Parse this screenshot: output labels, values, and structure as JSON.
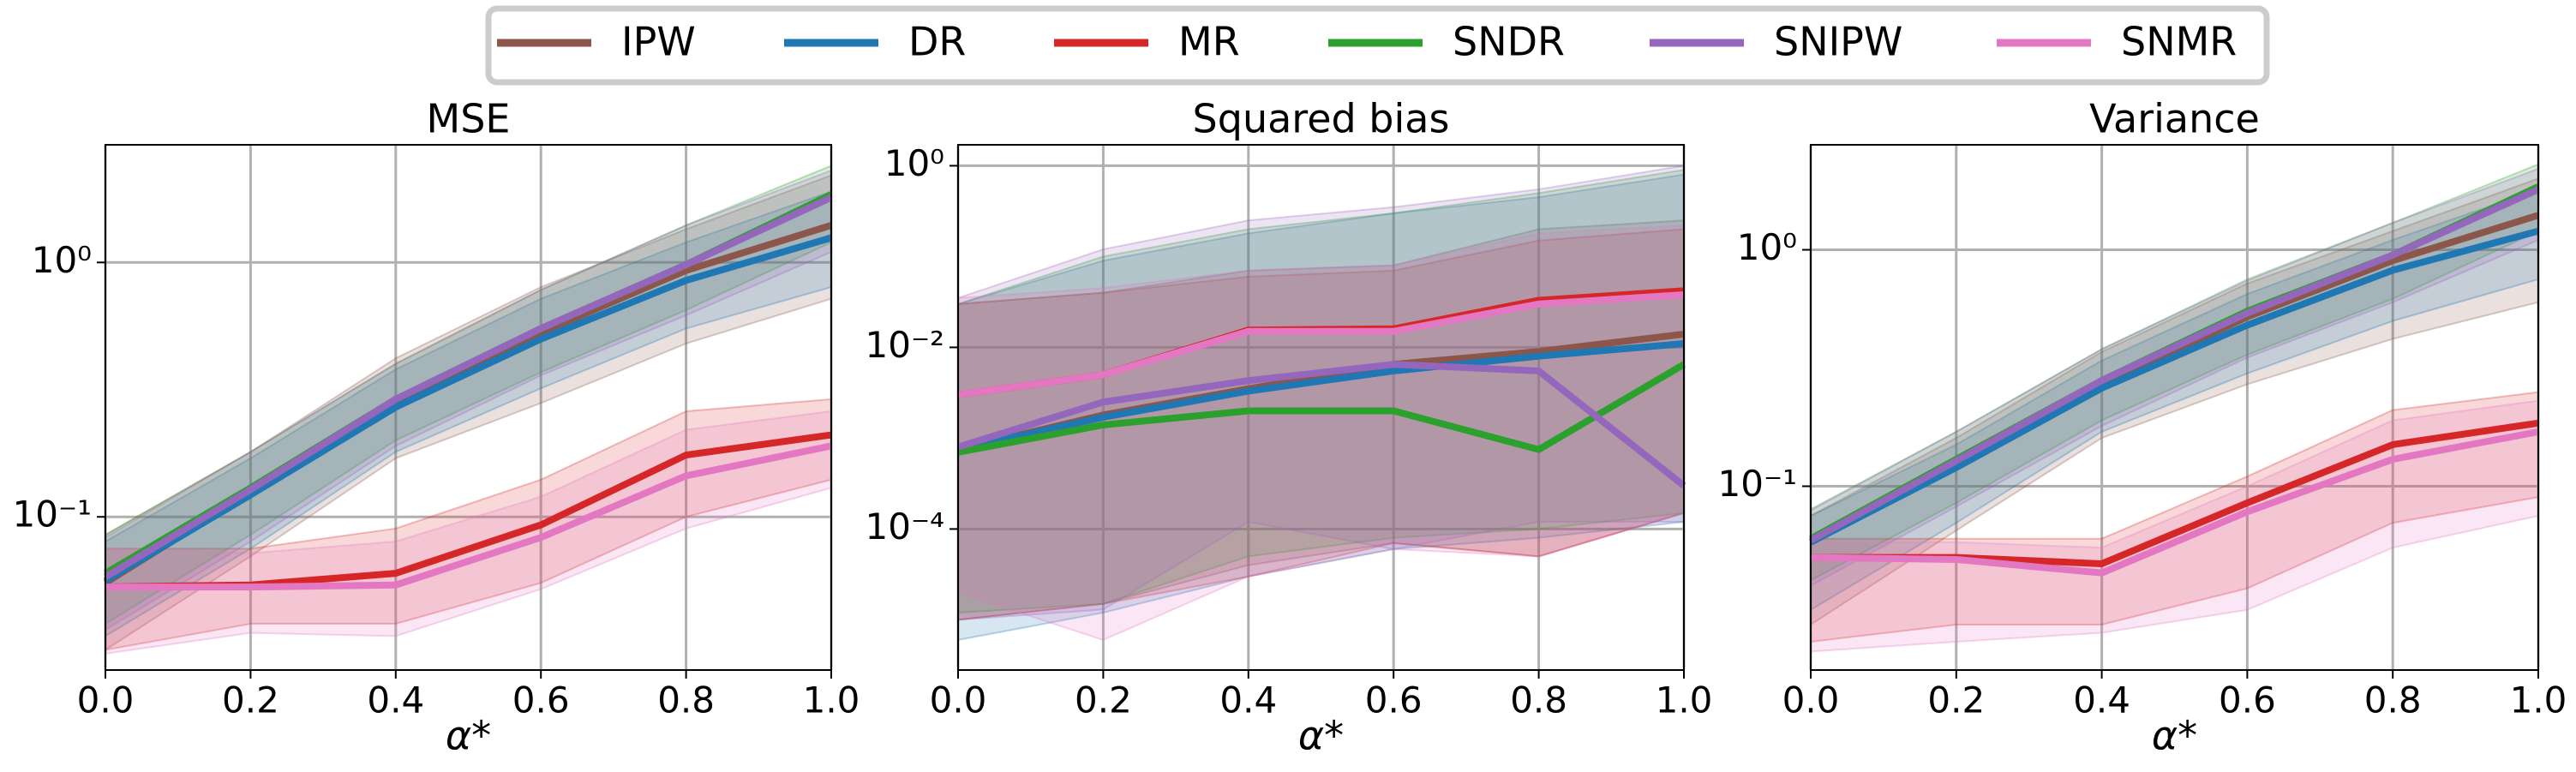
{
  "chart_data": [
    {
      "type": "line",
      "title": "MSE",
      "xlabel": "α*",
      "log_y": true,
      "grid": true,
      "legend": "top",
      "x": [
        0,
        0.2,
        0.4,
        0.6,
        0.8,
        1.0
      ],
      "xlim": [
        0,
        1.0
      ],
      "xticks": [
        {
          "value": 0,
          "label": "0.0"
        },
        {
          "value": 0.2,
          "label": "0.2"
        },
        {
          "value": 0.4,
          "label": "0.4"
        },
        {
          "value": 0.6,
          "label": "0.6"
        },
        {
          "value": 0.8,
          "label": "0.8"
        },
        {
          "value": 1.0,
          "label": "1.0"
        }
      ],
      "ylim": [
        0.025,
        2.9
      ],
      "yticks": [
        {
          "value": 0.1,
          "label": "10⁻¹"
        },
        {
          "value": 1,
          "label": "10⁰"
        }
      ],
      "series": [
        {
          "name": "IPW",
          "color": "#8c564b",
          "values": [
            0.055,
            0.125,
            0.28,
            0.53,
            0.93,
            1.4
          ],
          "lower": [
            0.03,
            0.07,
            0.17,
            0.28,
            0.48,
            0.72
          ],
          "upper": [
            0.085,
            0.18,
            0.42,
            0.8,
            1.35,
            2.2
          ]
        },
        {
          "name": "DR",
          "color": "#1f77b4",
          "values": [
            0.056,
            0.122,
            0.27,
            0.5,
            0.85,
            1.25
          ],
          "lower": [
            0.034,
            0.075,
            0.18,
            0.32,
            0.55,
            0.8
          ],
          "upper": [
            0.08,
            0.17,
            0.38,
            0.72,
            1.2,
            1.9
          ]
        },
        {
          "name": "MR",
          "color": "#d62728",
          "values": [
            0.053,
            0.054,
            0.06,
            0.093,
            0.175,
            0.21
          ],
          "lower": [
            0.03,
            0.038,
            0.038,
            0.055,
            0.1,
            0.14
          ],
          "upper": [
            0.075,
            0.075,
            0.09,
            0.14,
            0.26,
            0.29
          ]
        },
        {
          "name": "SNDR",
          "color": "#2ca02c",
          "values": [
            0.06,
            0.13,
            0.29,
            0.55,
            0.98,
            1.85
          ],
          "lower": [
            0.038,
            0.085,
            0.2,
            0.37,
            0.65,
            1.2
          ],
          "upper": [
            0.085,
            0.18,
            0.4,
            0.78,
            1.4,
            2.4
          ]
        },
        {
          "name": "SNIPW",
          "color": "#9467bd",
          "values": [
            0.058,
            0.128,
            0.29,
            0.55,
            0.98,
            1.8
          ],
          "lower": [
            0.036,
            0.08,
            0.19,
            0.36,
            0.62,
            1.1
          ],
          "upper": [
            0.083,
            0.18,
            0.4,
            0.78,
            1.4,
            2.3
          ]
        },
        {
          "name": "SNMR",
          "color": "#e377c2",
          "values": [
            0.053,
            0.053,
            0.054,
            0.083,
            0.145,
            0.19
          ],
          "lower": [
            0.029,
            0.035,
            0.034,
            0.052,
            0.09,
            0.13
          ],
          "upper": [
            0.075,
            0.072,
            0.08,
            0.12,
            0.22,
            0.26
          ]
        }
      ]
    },
    {
      "type": "line",
      "title": "Squared bias",
      "xlabel": "α*",
      "log_y": true,
      "grid": true,
      "x": [
        0,
        0.2,
        0.4,
        0.6,
        0.8,
        1.0
      ],
      "xlim": [
        0,
        1.0
      ],
      "xticks": [
        {
          "value": 0,
          "label": "0.0"
        },
        {
          "value": 0.2,
          "label": "0.2"
        },
        {
          "value": 0.4,
          "label": "0.4"
        },
        {
          "value": 0.6,
          "label": "0.6"
        },
        {
          "value": 0.8,
          "label": "0.8"
        },
        {
          "value": 1.0,
          "label": "1.0"
        }
      ],
      "ylim": [
        2.8e-06,
        1.7
      ],
      "yticks": [
        {
          "value": 0.0001,
          "label": "10⁻⁴"
        },
        {
          "value": 0.01,
          "label": "10⁻²"
        },
        {
          "value": 1,
          "label": "10⁰"
        }
      ],
      "series": [
        {
          "name": "IPW",
          "color": "#8c564b",
          "values": [
            0.00075,
            0.0018,
            0.0035,
            0.0065,
            0.009,
            0.014
          ],
          "lower": [
            1e-05,
            1.5e-05,
            4e-05,
            7e-05,
            5e-05,
            0.00015
          ],
          "upper": [
            0.03,
            0.04,
            0.07,
            0.08,
            0.2,
            0.25
          ]
        },
        {
          "name": "DR",
          "color": "#1f77b4",
          "values": [
            0.00075,
            0.0017,
            0.0033,
            0.0055,
            0.008,
            0.011
          ],
          "lower": [
            6e-06,
            1.2e-05,
            3e-05,
            6e-05,
            8e-05,
            0.00012
          ],
          "upper": [
            0.03,
            0.09,
            0.18,
            0.3,
            0.45,
            0.8
          ]
        },
        {
          "name": "MR",
          "color": "#d62728",
          "values": [
            0.003,
            0.005,
            0.0155,
            0.016,
            0.033,
            0.042
          ],
          "lower": [
            1e-05,
            1.5e-05,
            3e-05,
            7e-05,
            5e-05,
            0.00015
          ],
          "upper": [
            0.03,
            0.04,
            0.06,
            0.07,
            0.15,
            0.2
          ]
        },
        {
          "name": "SNDR",
          "color": "#2ca02c",
          "values": [
            0.0007,
            0.0014,
            0.002,
            0.002,
            0.00075,
            0.0065
          ],
          "lower": [
            1.2e-05,
            1.5e-05,
            5e-05,
            8e-05,
            0.0001,
            0.00015
          ],
          "upper": [
            0.03,
            0.1,
            0.2,
            0.3,
            0.5,
            0.9
          ]
        },
        {
          "name": "SNIPW",
          "color": "#9467bd",
          "values": [
            0.0008,
            0.0025,
            0.0043,
            0.0065,
            0.0055,
            0.0003
          ],
          "lower": [
            1e-05,
            1.3e-05,
            0.00012,
            6e-05,
            0.00012,
            0.00012
          ],
          "upper": [
            0.035,
            0.12,
            0.25,
            0.35,
            0.55,
            1.0
          ]
        },
        {
          "name": "SNMR",
          "color": "#e377c2",
          "values": [
            0.003,
            0.005,
            0.015,
            0.015,
            0.03,
            0.038
          ],
          "lower": [
            2e-05,
            6e-06,
            3e-05,
            6e-05,
            5e-05,
            0.00015
          ],
          "upper": [
            0.035,
            0.045,
            0.07,
            0.08,
            0.18,
            0.22
          ]
        }
      ]
    },
    {
      "type": "line",
      "title": "Variance",
      "xlabel": "α*",
      "log_y": true,
      "grid": true,
      "x": [
        0,
        0.2,
        0.4,
        0.6,
        0.8,
        1.0
      ],
      "xlim": [
        0,
        1.0
      ],
      "xticks": [
        {
          "value": 0,
          "label": "0.0"
        },
        {
          "value": 0.2,
          "label": "0.2"
        },
        {
          "value": 0.4,
          "label": "0.4"
        },
        {
          "value": 0.6,
          "label": "0.6"
        },
        {
          "value": 0.8,
          "label": "0.8"
        },
        {
          "value": 1.0,
          "label": "1.0"
        }
      ],
      "ylim": [
        0.0167,
        2.78
      ],
      "yticks": [
        {
          "value": 0.1,
          "label": "10⁻¹"
        },
        {
          "value": 1,
          "label": "10⁰"
        }
      ],
      "series": [
        {
          "name": "IPW",
          "color": "#8c564b",
          "values": [
            0.058,
            0.125,
            0.27,
            0.52,
            0.9,
            1.4
          ],
          "lower": [
            0.026,
            0.065,
            0.16,
            0.27,
            0.42,
            0.6
          ],
          "upper": [
            0.075,
            0.16,
            0.37,
            0.72,
            1.2,
            2.0
          ]
        },
        {
          "name": "DR",
          "color": "#1f77b4",
          "values": [
            0.058,
            0.12,
            0.26,
            0.48,
            0.82,
            1.2
          ],
          "lower": [
            0.03,
            0.07,
            0.17,
            0.3,
            0.5,
            0.75
          ],
          "upper": [
            0.075,
            0.15,
            0.34,
            0.65,
            1.1,
            1.8
          ]
        },
        {
          "name": "MR",
          "color": "#d62728",
          "values": [
            0.05,
            0.05,
            0.047,
            0.085,
            0.15,
            0.185
          ],
          "lower": [
            0.022,
            0.026,
            0.026,
            0.037,
            0.07,
            0.09
          ],
          "upper": [
            0.06,
            0.06,
            0.06,
            0.11,
            0.21,
            0.25
          ]
        },
        {
          "name": "SNDR",
          "color": "#2ca02c",
          "values": [
            0.06,
            0.13,
            0.28,
            0.55,
            0.95,
            1.85
          ],
          "lower": [
            0.04,
            0.085,
            0.19,
            0.36,
            0.62,
            1.2
          ],
          "upper": [
            0.08,
            0.17,
            0.38,
            0.75,
            1.3,
            2.3
          ]
        },
        {
          "name": "SNIPW",
          "color": "#9467bd",
          "values": [
            0.059,
            0.128,
            0.28,
            0.54,
            0.95,
            1.8
          ],
          "lower": [
            0.038,
            0.082,
            0.18,
            0.35,
            0.6,
            1.1
          ],
          "upper": [
            0.079,
            0.17,
            0.38,
            0.74,
            1.3,
            2.2
          ]
        },
        {
          "name": "SNMR",
          "color": "#e377c2",
          "values": [
            0.05,
            0.049,
            0.043,
            0.078,
            0.13,
            0.17
          ],
          "lower": [
            0.02,
            0.022,
            0.024,
            0.03,
            0.055,
            0.075
          ],
          "upper": [
            0.058,
            0.058,
            0.055,
            0.1,
            0.19,
            0.23
          ]
        }
      ]
    }
  ]
}
